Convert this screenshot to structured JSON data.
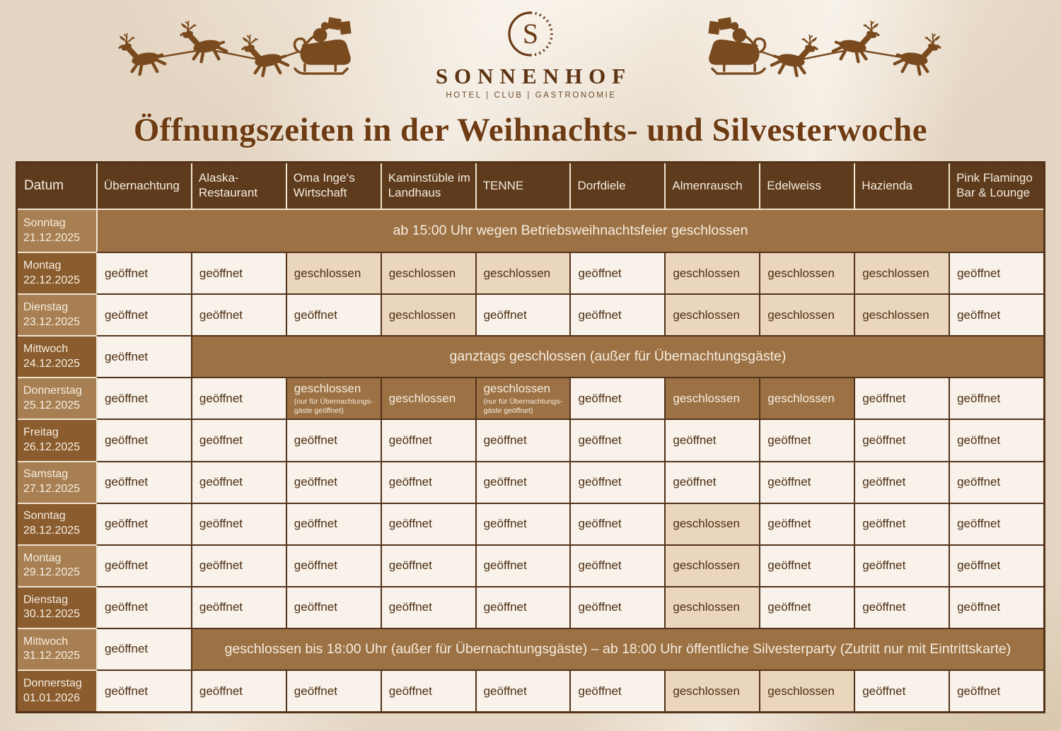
{
  "page": {
    "title": "Öffnungszeiten in der Weihnachts- und Silvesterwoche"
  },
  "logo": {
    "monogram": "S",
    "name": "SONNENHOF",
    "tagline": "HOTEL | CLUB | GASTRONOMIE"
  },
  "decorations": {
    "left": "santa-sleigh-with-reindeer-flying-left",
    "right": "santa-sleigh-with-reindeer-flying-right"
  },
  "colors": {
    "page_bg": "#ebdfce",
    "header_bg": "#5e3b1c",
    "date_row_light": "#a87f52",
    "date_row_dark": "#8a5c2e",
    "merged_notice_bg": "#9c7144",
    "open_cell_bg": "#f8f2ea",
    "closed_cell_bg": "#ead5bd",
    "cell_text": "#4d2e12",
    "light_text": "#f6eee0",
    "title_text": "#6e3b12",
    "silhouette": "#7a4a1f",
    "table_border": "#53331a"
  },
  "table": {
    "date_header": "Datum",
    "columns": [
      "Übernachtung",
      "Alaska-Restaurant",
      "Oma Inge‘s Wirtschaft",
      "Kaminstüble im Landhaus",
      "TENNE",
      "Dorfdiele",
      "Almenrausch",
      "Edelweiss",
      "Hazienda",
      "Pink Flamingo Bar & Lounge"
    ],
    "open_label": "geöffnet",
    "closed_label": "geschlossen",
    "note": "(nur für Übernachtungs-gäste geöffnet)",
    "rows": [
      {
        "day": "Sonntag",
        "date": "21.12.2025",
        "shade": "light",
        "cells": [
          {
            "span": 10,
            "text": "ab 15:00 Uhr wegen Betriebsweihnachtsfeier geschlossen"
          }
        ]
      },
      {
        "day": "Montag",
        "date": "22.12.2025",
        "shade": "dark",
        "cells": [
          "open",
          "open",
          "closed",
          "closed",
          "closed",
          "open",
          "closed",
          "closed",
          "closed",
          "open"
        ]
      },
      {
        "day": "Dienstag",
        "date": "23.12.2025",
        "shade": "light",
        "cells": [
          "open",
          "open",
          "open",
          "closed",
          "open",
          "open",
          "closed",
          "closed",
          "closed",
          "open"
        ]
      },
      {
        "day": "Mittwoch",
        "date": "24.12.2025",
        "shade": "dark",
        "cells": [
          "open",
          {
            "span": 9,
            "text": "ganztags geschlossen (außer für Übernachtungsgäste)"
          }
        ]
      },
      {
        "day": "Donnerstag",
        "date": "25.12.2025",
        "shade": "light",
        "cells": [
          "open",
          "open",
          "dark_note",
          "dark",
          "dark_note",
          "open",
          "dark",
          "dark",
          "open",
          "open"
        ]
      },
      {
        "day": "Freitag",
        "date": "26.12.2025",
        "shade": "dark",
        "cells": [
          "open",
          "open",
          "open",
          "open",
          "open",
          "open",
          "open",
          "open",
          "open",
          "open"
        ]
      },
      {
        "day": "Samstag",
        "date": "27.12.2025",
        "shade": "light",
        "cells": [
          "open",
          "open",
          "open",
          "open",
          "open",
          "open",
          "open",
          "open",
          "open",
          "open"
        ]
      },
      {
        "day": "Sonntag",
        "date": "28.12.2025",
        "shade": "dark",
        "cells": [
          "open",
          "open",
          "open",
          "open",
          "open",
          "open",
          "closed",
          "open",
          "open",
          "open"
        ]
      },
      {
        "day": "Montag",
        "date": "29.12.2025",
        "shade": "light",
        "cells": [
          "open",
          "open",
          "open",
          "open",
          "open",
          "open",
          "closed",
          "open",
          "open",
          "open"
        ]
      },
      {
        "day": "Dienstag",
        "date": "30.12.2025",
        "shade": "dark",
        "cells": [
          "open",
          "open",
          "open",
          "open",
          "open",
          "open",
          "closed",
          "open",
          "open",
          "open"
        ]
      },
      {
        "day": "Mittwoch",
        "date": "31.12.2025",
        "shade": "light",
        "cells": [
          "open",
          {
            "span": 9,
            "text": "geschlossen bis 18:00 Uhr (außer für Übernachtungsgäste) – ab 18:00 Uhr öffentliche Silvesterparty (Zutritt nur mit Eintrittskarte)"
          }
        ]
      },
      {
        "day": "Donnerstag",
        "date": "01.01.2026",
        "shade": "dark",
        "cells": [
          "open",
          "open",
          "open",
          "open",
          "open",
          "open",
          "closed",
          "closed",
          "open",
          "open"
        ]
      }
    ]
  }
}
